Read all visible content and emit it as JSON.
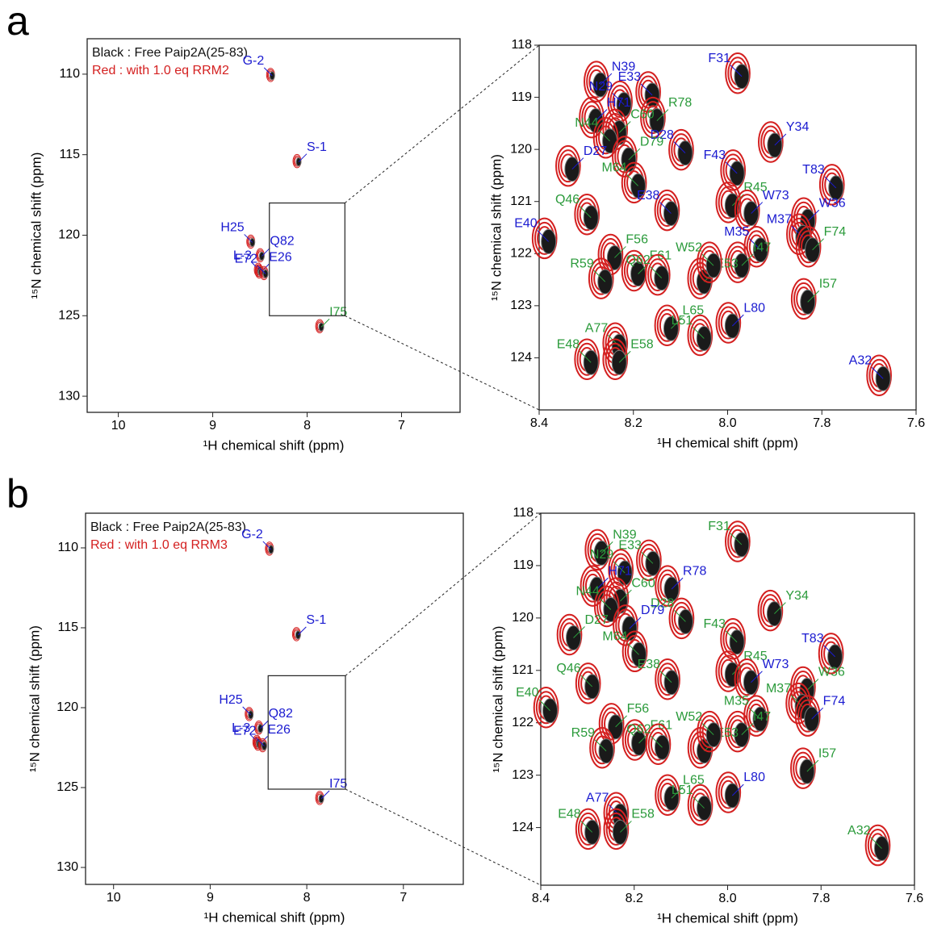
{
  "panel_labels": [
    "a",
    "b"
  ],
  "chart_data": [
    {
      "type": "scatter",
      "xlabel": "¹H chemical shift (ppm)",
      "ylabel": "¹⁵N chemical shift (ppm)",
      "xlim": [
        10.33,
        6.38
      ],
      "ylim": [
        107.8,
        131
      ],
      "xticks": [
        10,
        9,
        8,
        7
      ],
      "yticks": [
        110,
        115,
        120,
        125,
        130
      ],
      "legend": [
        {
          "text": "Black : Free Paip2A(25-83)",
          "color": "#111111"
        },
        {
          "text": "Red : with 1.0 eq RRM2",
          "color": "#d42020"
        }
      ],
      "points": [
        {
          "label": "G-2",
          "x": 8.37,
          "y": 110.1,
          "color": "#1a1ad0"
        },
        {
          "label": "S-1",
          "x": 8.09,
          "y": 115.45,
          "color": "#1a1ad0"
        },
        {
          "label": "H25",
          "x": 8.58,
          "y": 120.45,
          "color": "#1a1ad0"
        },
        {
          "label": "Q82",
          "x": 8.48,
          "y": 121.3,
          "color": "#1a1ad0"
        },
        {
          "label": "L-3",
          "x": 8.5,
          "y": 122.2,
          "color": "#1a1ad0"
        },
        {
          "label": "E26",
          "x": 8.49,
          "y": 122.3,
          "color": "#1a1ad0"
        },
        {
          "label": "E72",
          "x": 8.44,
          "y": 122.4,
          "color": "#1a1ad0"
        },
        {
          "label": "I75",
          "x": 7.85,
          "y": 125.7,
          "color": "#2a9a3a"
        }
      ]
    },
    {
      "type": "scatter",
      "xlabel": "¹H chemical shift (ppm)",
      "ylabel": "¹⁵N chemical shift (ppm)",
      "xlim": [
        8.4,
        7.6
      ],
      "ylim": [
        118,
        125
      ],
      "xticks": [
        8.4,
        8.2,
        {
          "value": 8,
          "label": "8.0"
        },
        7.8,
        7.6
      ],
      "yticks": [
        118,
        119,
        120,
        121,
        122,
        123,
        124
      ],
      "points": [
        {
          "label": "F31",
          "x": 7.97,
          "y": 118.6,
          "color": "#1a1ad0"
        },
        {
          "label": "N39",
          "x": 8.27,
          "y": 118.76,
          "color": "#1a1ad0"
        },
        {
          "label": "E33",
          "x": 8.16,
          "y": 118.96,
          "color": "#1a1ad0"
        },
        {
          "label": "R78",
          "x": 8.15,
          "y": 119.45,
          "color": "#2a9a3a"
        },
        {
          "label": "N29",
          "x": 8.22,
          "y": 119.14,
          "color": "#1a1ad0"
        },
        {
          "label": "H71",
          "x": 8.28,
          "y": 119.45,
          "color": "#1a1ad0"
        },
        {
          "label": "D28",
          "x": 8.09,
          "y": 120.07,
          "color": "#1a1ad0"
        },
        {
          "label": "C60",
          "x": 8.23,
          "y": 119.68,
          "color": "#2a9a3a"
        },
        {
          "label": "N44",
          "x": 8.25,
          "y": 119.84,
          "color": "#2a9a3a"
        },
        {
          "label": "D79",
          "x": 8.21,
          "y": 120.2,
          "color": "#2a9a3a"
        },
        {
          "label": "M64",
          "x": 8.19,
          "y": 120.7,
          "color": "#2a9a3a"
        },
        {
          "label": "Y34",
          "x": 7.9,
          "y": 119.92,
          "color": "#1a1ad0"
        },
        {
          "label": "F43",
          "x": 7.98,
          "y": 120.46,
          "color": "#1a1ad0"
        },
        {
          "label": "D27",
          "x": 8.33,
          "y": 120.38,
          "color": "#1a1ad0"
        },
        {
          "label": "T83",
          "x": 7.77,
          "y": 120.74,
          "color": "#1a1ad0"
        },
        {
          "label": "R45",
          "x": 7.99,
          "y": 121.08,
          "color": "#2a9a3a"
        },
        {
          "label": "E38",
          "x": 8.12,
          "y": 121.23,
          "color": "#1a1ad0"
        },
        {
          "label": "W73",
          "x": 7.95,
          "y": 121.23,
          "color": "#1a1ad0"
        },
        {
          "label": "Q46",
          "x": 8.29,
          "y": 121.31,
          "color": "#2a9a3a"
        },
        {
          "label": "W36",
          "x": 7.83,
          "y": 121.38,
          "color": "#1a1ad0"
        },
        {
          "label": "M37",
          "x": 7.84,
          "y": 121.69,
          "color": "#1a1ad0"
        },
        {
          "label": "F74",
          "x": 7.82,
          "y": 121.93,
          "color": "#2a9a3a"
        },
        {
          "label": "E40",
          "x": 8.38,
          "y": 121.77,
          "color": "#1a1ad0"
        },
        {
          "label": "F56",
          "x": 8.24,
          "y": 122.08,
          "color": "#2a9a3a"
        },
        {
          "label": "M35",
          "x": 7.93,
          "y": 121.93,
          "color": "#1a1ad0"
        },
        {
          "label": "I47",
          "x": 7.97,
          "y": 122.23,
          "color": "#2a9a3a"
        },
        {
          "label": "R59",
          "x": 8.26,
          "y": 122.54,
          "color": "#2a9a3a"
        },
        {
          "label": "F61",
          "x": 8.19,
          "y": 122.39,
          "color": "#2a9a3a"
        },
        {
          "label": "Q62",
          "x": 8.14,
          "y": 122.47,
          "color": "#2a9a3a"
        },
        {
          "label": "E53",
          "x": 8.05,
          "y": 122.54,
          "color": "#2a9a3a"
        },
        {
          "label": "W52",
          "x": 8.03,
          "y": 122.23,
          "color": "#2a9a3a"
        },
        {
          "label": "I57",
          "x": 7.83,
          "y": 122.93,
          "color": "#2a9a3a"
        },
        {
          "label": "A77",
          "x": 8.23,
          "y": 123.78,
          "color": "#2a9a3a"
        },
        {
          "label": "L65",
          "x": 8.12,
          "y": 123.44,
          "color": "#2a9a3a"
        },
        {
          "label": "L51",
          "x": 8.05,
          "y": 123.63,
          "color": "#2a9a3a"
        },
        {
          "label": "L80",
          "x": 7.99,
          "y": 123.39,
          "color": "#1a1ad0"
        },
        {
          "label": "E48",
          "x": 8.29,
          "y": 124.09,
          "color": "#2a9a3a"
        },
        {
          "label": "E58",
          "x": 8.23,
          "y": 124.09,
          "color": "#2a9a3a"
        },
        {
          "label": "A32",
          "x": 7.67,
          "y": 124.4,
          "color": "#1a1ad0"
        }
      ]
    },
    {
      "type": "scatter",
      "xlabel": "¹H chemical shift (ppm)",
      "ylabel": "¹⁵N chemical shift (ppm)",
      "xlim": [
        10.29,
        6.38
      ],
      "ylim": [
        107.83,
        131.06
      ],
      "xticks": [
        10,
        9,
        8,
        7
      ],
      "yticks": [
        110,
        115,
        120,
        125,
        130
      ],
      "legend": [
        {
          "text": "Black : Free Paip2A(25-83)",
          "color": "#111111"
        },
        {
          "text": "Red : with 1.0 eq RRM3",
          "color": "#d42020"
        }
      ],
      "points": [
        {
          "label": "G-2",
          "x": 8.37,
          "y": 110.1,
          "color": "#1a1ad0"
        },
        {
          "label": "S-1",
          "x": 8.09,
          "y": 115.45,
          "color": "#1a1ad0"
        },
        {
          "label": "H25",
          "x": 8.58,
          "y": 120.45,
          "color": "#1a1ad0"
        },
        {
          "label": "Q82",
          "x": 8.48,
          "y": 121.3,
          "color": "#1a1ad0"
        },
        {
          "label": "L-3",
          "x": 8.5,
          "y": 122.2,
          "color": "#1a1ad0"
        },
        {
          "label": "E26",
          "x": 8.49,
          "y": 122.3,
          "color": "#1a1ad0"
        },
        {
          "label": "E72",
          "x": 8.44,
          "y": 122.4,
          "color": "#1a1ad0"
        },
        {
          "label": "I75",
          "x": 7.85,
          "y": 125.7,
          "color": "#1a1ad0"
        }
      ]
    },
    {
      "type": "scatter",
      "xlabel": "¹H chemical shift (ppm)",
      "ylabel": "¹⁵N chemical shift (ppm)",
      "xlim": [
        8.4,
        7.6
      ],
      "ylim": [
        118,
        125.1
      ],
      "xticks": [
        8.4,
        8.2,
        {
          "value": 8,
          "label": "8.0"
        },
        7.8,
        7.6
      ],
      "yticks": [
        118,
        119,
        120,
        121,
        122,
        123,
        124
      ],
      "points": [
        {
          "label": "F31",
          "x": 7.97,
          "y": 118.6,
          "color": "#2a9a3a"
        },
        {
          "label": "N39",
          "x": 8.27,
          "y": 118.76,
          "color": "#2a9a3a"
        },
        {
          "label": "E33",
          "x": 8.16,
          "y": 118.96,
          "color": "#2a9a3a"
        },
        {
          "label": "R78",
          "x": 8.12,
          "y": 119.45,
          "color": "#1a1ad0"
        },
        {
          "label": "N29",
          "x": 8.22,
          "y": 119.14,
          "color": "#2a9a3a"
        },
        {
          "label": "H71",
          "x": 8.28,
          "y": 119.45,
          "color": "#1a1ad0"
        },
        {
          "label": "D28",
          "x": 8.09,
          "y": 120.07,
          "color": "#2a9a3a"
        },
        {
          "label": "C60",
          "x": 8.23,
          "y": 119.68,
          "color": "#2a9a3a"
        },
        {
          "label": "N44",
          "x": 8.25,
          "y": 119.84,
          "color": "#2a9a3a"
        },
        {
          "label": "D79",
          "x": 8.21,
          "y": 120.2,
          "color": "#1a1ad0"
        },
        {
          "label": "M64",
          "x": 8.19,
          "y": 120.7,
          "color": "#2a9a3a"
        },
        {
          "label": "Y34",
          "x": 7.9,
          "y": 119.92,
          "color": "#2a9a3a"
        },
        {
          "label": "F43",
          "x": 7.98,
          "y": 120.46,
          "color": "#2a9a3a"
        },
        {
          "label": "D27",
          "x": 8.33,
          "y": 120.38,
          "color": "#2a9a3a"
        },
        {
          "label": "T83",
          "x": 7.77,
          "y": 120.74,
          "color": "#1a1ad0"
        },
        {
          "label": "R45",
          "x": 7.99,
          "y": 121.08,
          "color": "#2a9a3a"
        },
        {
          "label": "E38",
          "x": 8.12,
          "y": 121.23,
          "color": "#2a9a3a"
        },
        {
          "label": "W73",
          "x": 7.95,
          "y": 121.23,
          "color": "#1a1ad0"
        },
        {
          "label": "Q46",
          "x": 8.29,
          "y": 121.31,
          "color": "#2a9a3a"
        },
        {
          "label": "W36",
          "x": 7.83,
          "y": 121.38,
          "color": "#2a9a3a"
        },
        {
          "label": "M37",
          "x": 7.84,
          "y": 121.69,
          "color": "#2a9a3a"
        },
        {
          "label": "F74",
          "x": 7.82,
          "y": 121.93,
          "color": "#1a1ad0"
        },
        {
          "label": "E40",
          "x": 8.38,
          "y": 121.77,
          "color": "#2a9a3a"
        },
        {
          "label": "F56",
          "x": 8.24,
          "y": 122.08,
          "color": "#2a9a3a"
        },
        {
          "label": "M35",
          "x": 7.93,
          "y": 121.93,
          "color": "#2a9a3a"
        },
        {
          "label": "I47",
          "x": 7.97,
          "y": 122.23,
          "color": "#2a9a3a"
        },
        {
          "label": "R59",
          "x": 8.26,
          "y": 122.54,
          "color": "#2a9a3a"
        },
        {
          "label": "F61",
          "x": 8.19,
          "y": 122.39,
          "color": "#2a9a3a"
        },
        {
          "label": "Q62",
          "x": 8.14,
          "y": 122.47,
          "color": "#2a9a3a"
        },
        {
          "label": "E53",
          "x": 8.05,
          "y": 122.54,
          "color": "#2a9a3a"
        },
        {
          "label": "W52",
          "x": 8.03,
          "y": 122.23,
          "color": "#2a9a3a"
        },
        {
          "label": "I57",
          "x": 7.83,
          "y": 122.93,
          "color": "#2a9a3a"
        },
        {
          "label": "A77",
          "x": 8.23,
          "y": 123.78,
          "color": "#1a1ad0"
        },
        {
          "label": "L65",
          "x": 8.12,
          "y": 123.44,
          "color": "#2a9a3a"
        },
        {
          "label": "L51",
          "x": 8.05,
          "y": 123.63,
          "color": "#2a9a3a"
        },
        {
          "label": "L80",
          "x": 7.99,
          "y": 123.39,
          "color": "#1a1ad0"
        },
        {
          "label": "E48",
          "x": 8.29,
          "y": 124.09,
          "color": "#2a9a3a"
        },
        {
          "label": "E58",
          "x": 8.23,
          "y": 124.09,
          "color": "#2a9a3a"
        },
        {
          "label": "A32",
          "x": 7.67,
          "y": 124.4,
          "color": "#2a9a3a"
        }
      ]
    }
  ]
}
